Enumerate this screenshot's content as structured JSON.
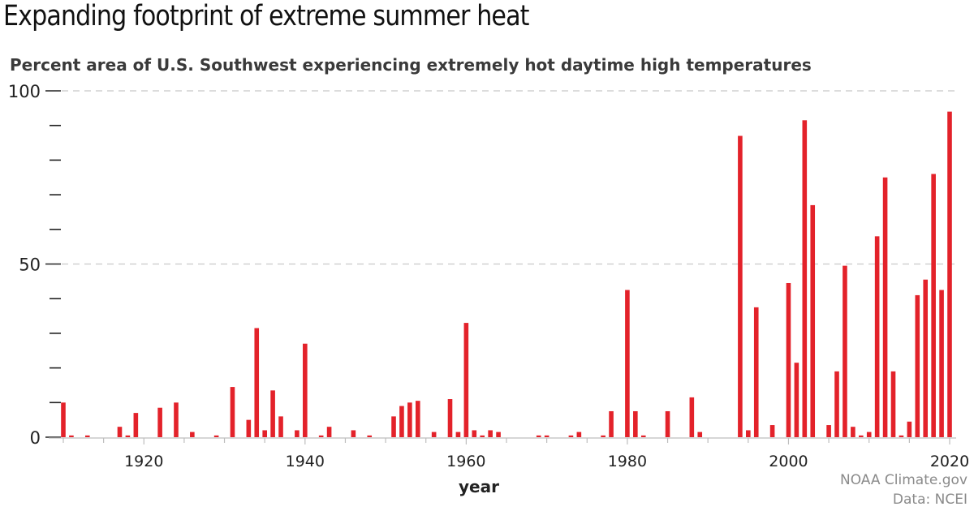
{
  "chart_data": {
    "type": "bar",
    "title": "Expanding footprint of extreme summer heat",
    "subtitle": "Percent area of U.S. Southwest experiencing extremely hot daytime high temperatures",
    "xlabel": "year",
    "ylabel": "",
    "xlim": [
      1910,
      2020
    ],
    "ylim": [
      0,
      100
    ],
    "y_ticks": [
      0,
      50,
      100
    ],
    "x_ticks": [
      1920,
      1940,
      1960,
      1980,
      2000,
      2020
    ],
    "grid": "dashed horizontal lines at 50 and 100",
    "bar_color": "#e3222a",
    "x": [
      1910,
      1911,
      1913,
      1917,
      1918,
      1919,
      1922,
      1924,
      1926,
      1929,
      1931,
      1933,
      1934,
      1935,
      1936,
      1937,
      1939,
      1940,
      1942,
      1943,
      1946,
      1948,
      1951,
      1952,
      1953,
      1954,
      1956,
      1958,
      1959,
      1960,
      1961,
      1962,
      1963,
      1964,
      1969,
      1970,
      1973,
      1974,
      1977,
      1978,
      1980,
      1981,
      1982,
      1985,
      1988,
      1989,
      1994,
      1995,
      1996,
      1998,
      2000,
      2001,
      2002,
      2003,
      2005,
      2006,
      2007,
      2008,
      2009,
      2010,
      2011,
      2012,
      2013,
      2014,
      2015,
      2016,
      2017,
      2018,
      2019,
      2020
    ],
    "values": [
      10,
      0.5,
      0.5,
      3,
      0.5,
      7,
      8.5,
      10,
      1.5,
      0.5,
      14.5,
      5,
      31.5,
      2,
      13.5,
      6,
      2,
      27,
      0.5,
      3,
      2,
      0.5,
      6,
      9,
      10,
      10.5,
      1.5,
      11,
      1.5,
      33,
      2,
      0.5,
      2,
      1.5,
      0.5,
      0.5,
      0.5,
      1.5,
      0.5,
      7.5,
      42.5,
      7.5,
      0.5,
      7.5,
      11.5,
      1.5,
      87,
      2,
      37.5,
      3.5,
      44.5,
      21.5,
      91.5,
      67,
      3.5,
      19,
      49.5,
      3,
      0.5,
      1.5,
      58,
      75,
      19,
      0.5,
      4.5,
      41,
      45.5,
      76,
      42.5,
      94
    ]
  },
  "credit": {
    "line1": "NOAA Climate.gov",
    "line2": "Data: NCEI"
  }
}
